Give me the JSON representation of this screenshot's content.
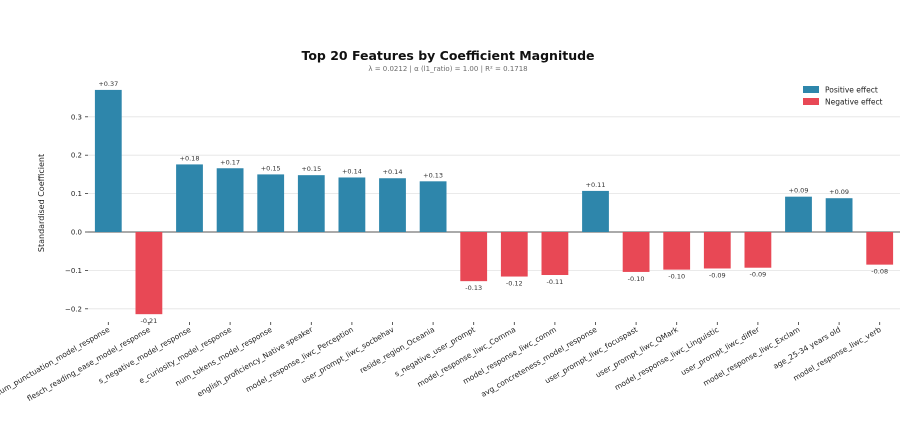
{
  "chart_data": {
    "type": "bar",
    "title": "Top 20 Features by Coefficient Magnitude",
    "subtitle": "λ = 0.0212   |   α (l1_ratio) = 1.00   |   R² = 0.1718",
    "ylabel": "Standardised Coefficient",
    "xlabel": "",
    "ylim": [
      -0.22,
      0.39
    ],
    "yticks": [
      -0.2,
      -0.1,
      0.0,
      0.1,
      0.2,
      0.3
    ],
    "ytick_labels": [
      "−0.2",
      "−0.1",
      "0.0",
      "0.1",
      "0.2",
      "0.3"
    ],
    "grid": "horizontal",
    "legend_position": "top-right",
    "colors": {
      "positive": "#2e86ab",
      "negative": "#e84855"
    },
    "legend": [
      {
        "key": "positive",
        "label": "Positive effect"
      },
      {
        "key": "negative",
        "label": "Negative effect"
      }
    ],
    "categories": [
      "num_punctuation_model_response",
      "flesch_reading_ease_model_response",
      "s_negative_model_response",
      "e_curiosity_model_response",
      "num_tokens_model_response",
      "english_proficiency_Native speaker",
      "model_response_liwc_Perception",
      "user_prompt_liwc_socbehav",
      "reside_region_Oceania",
      "s_negative_user_prompt",
      "model_response_liwc_Comma",
      "model_response_liwc_comm",
      "avg_concreteness_model_response",
      "user_prompt_liwc_focuspast",
      "user_prompt_liwc_QMark",
      "model_response_liwc_Linguistic",
      "user_prompt_liwc_differ",
      "model_response_liwc_Exclam",
      "age_25-34 years old",
      "model_response_liwc_verb"
    ],
    "values": [
      0.37,
      -0.214,
      0.176,
      0.166,
      0.15,
      0.148,
      0.142,
      0.14,
      0.132,
      -0.128,
      -0.116,
      -0.112,
      0.107,
      -0.104,
      -0.098,
      -0.095,
      -0.093,
      0.092,
      0.088,
      -0.085
    ],
    "value_labels": [
      "+0.37",
      "-0.21",
      "+0.18",
      "+0.17",
      "+0.15",
      "+0.15",
      "+0.14",
      "+0.14",
      "+0.13",
      "-0.13",
      "-0.12",
      "-0.11",
      "+0.11",
      "-0.10",
      "-0.10",
      "-0.09",
      "-0.09",
      "+0.09",
      "+0.09",
      "-0.08"
    ]
  }
}
